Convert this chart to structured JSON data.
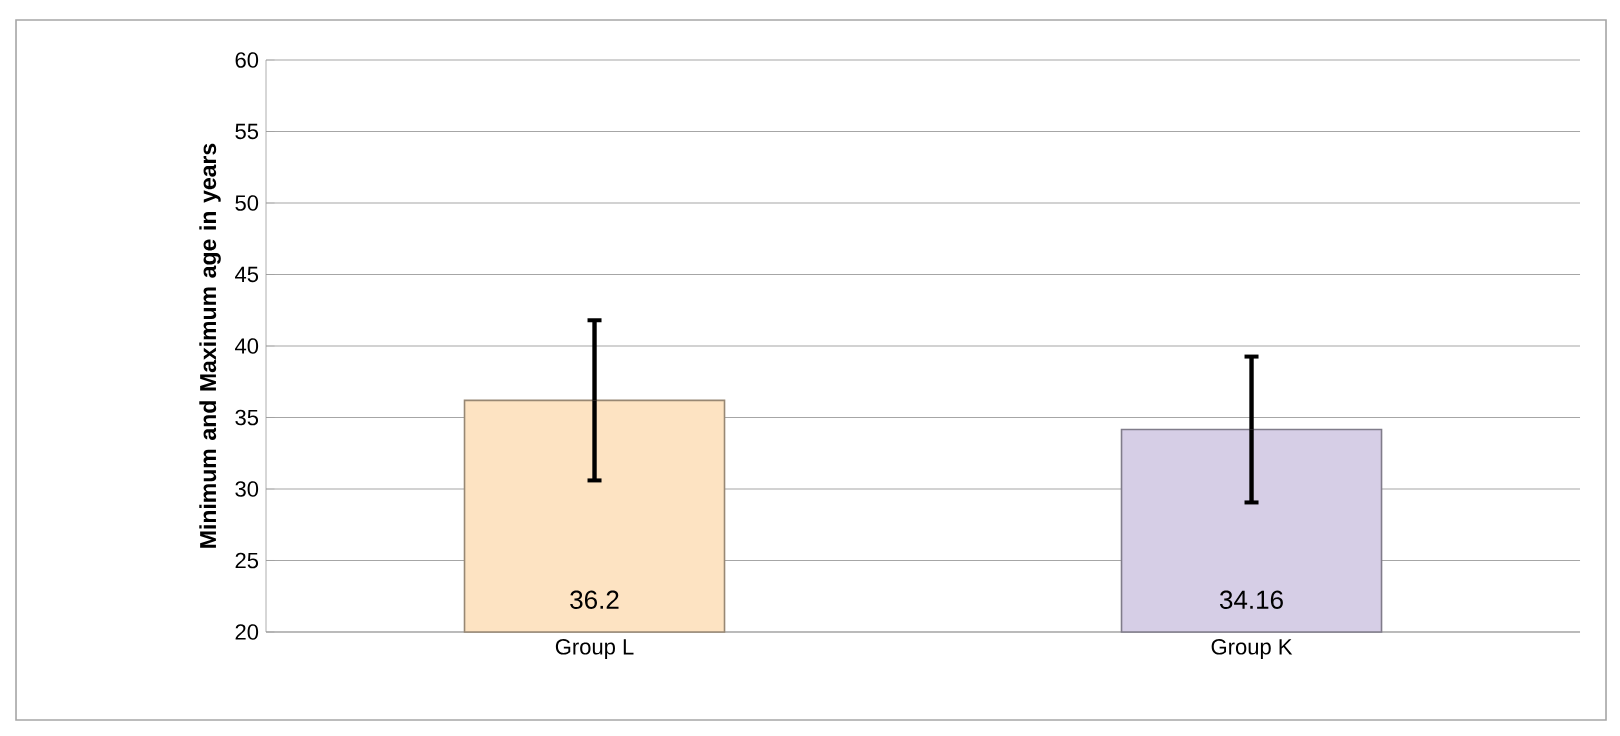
{
  "chart_data": {
    "type": "bar",
    "ylabel": "Minimum and Maximum age in years",
    "categories": [
      "Group L",
      "Group K"
    ],
    "values": [
      36.2,
      34.16
    ],
    "colors": [
      "#fde3c2",
      "#d6cee6"
    ],
    "errors": [
      5.6,
      5.1
    ],
    "data_labels": true,
    "ylim": [
      20,
      60
    ],
    "yticks": [
      20,
      25,
      30,
      35,
      40,
      45,
      50,
      55,
      60
    ],
    "grid": "y"
  }
}
